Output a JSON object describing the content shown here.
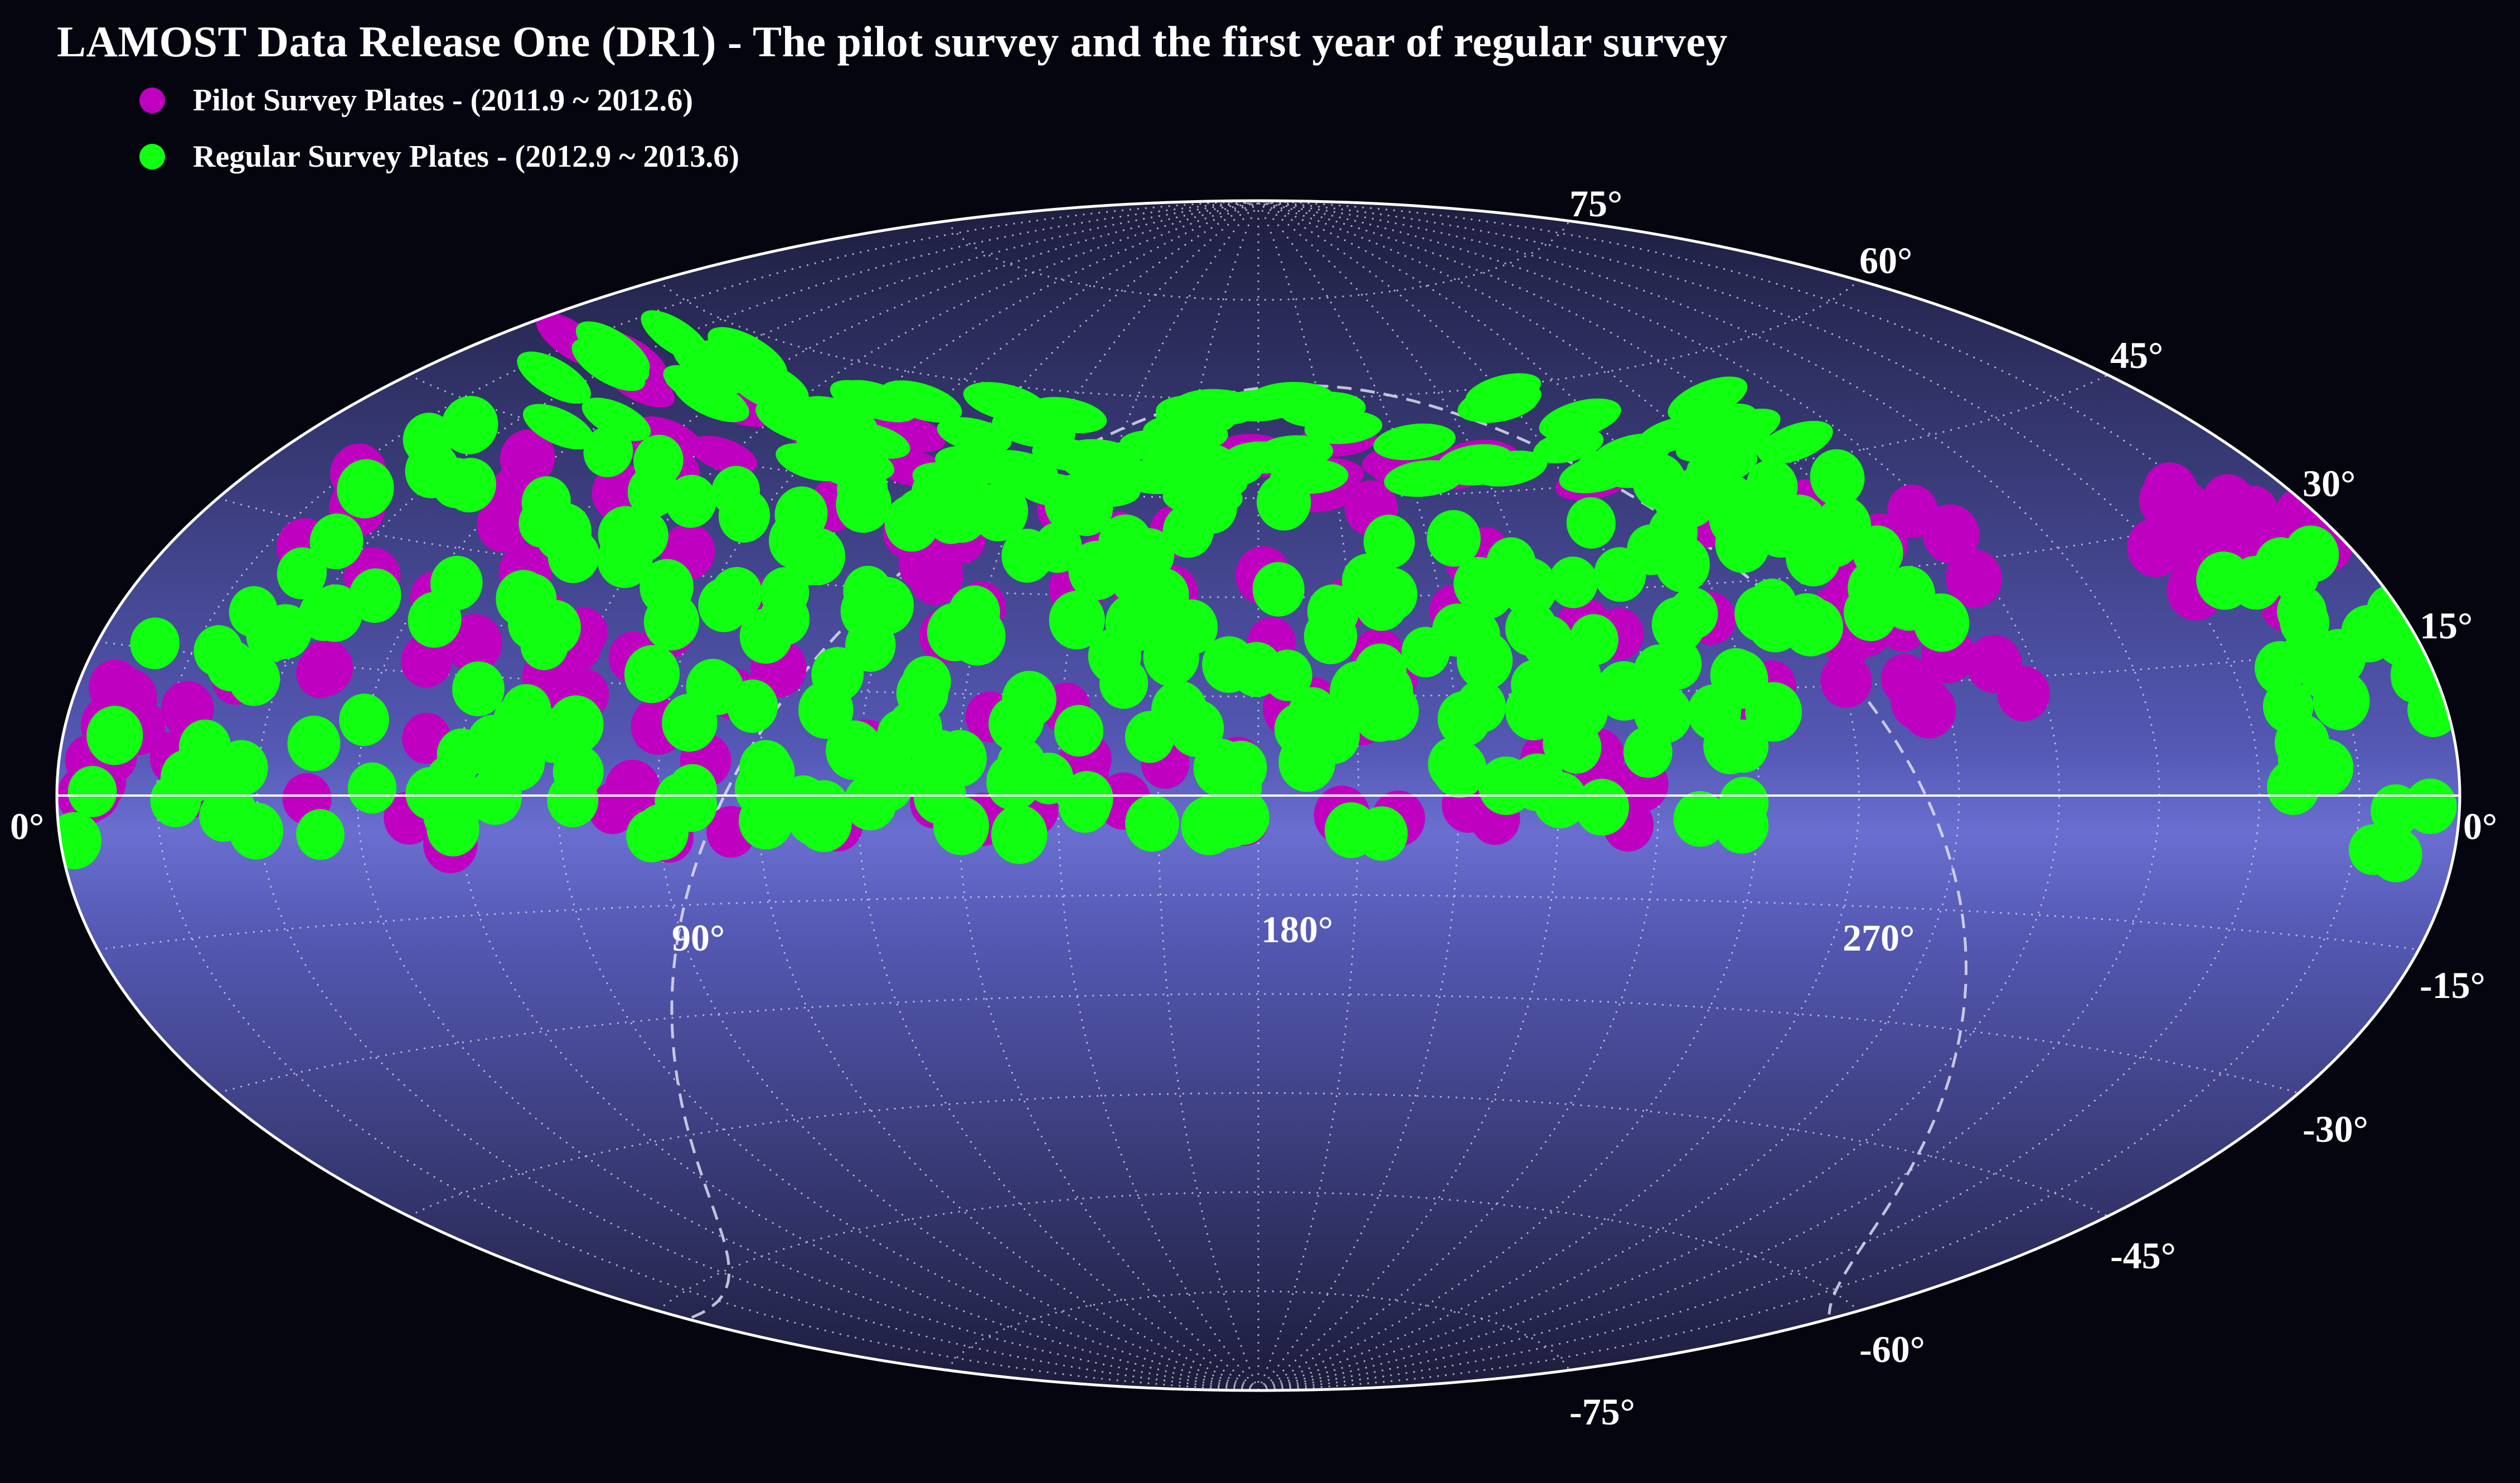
{
  "title": "LAMOST Data Release One (DR1) - The pilot survey and the first year of regular survey",
  "legend": [
    {
      "label": "Pilot Survey Plates - (2011.9 ~ 2012.6)",
      "color": "#c000c0"
    },
    {
      "label": "Regular Survey Plates - (2012.9 ~ 2013.6)",
      "color": "#11ff11"
    }
  ],
  "colors": {
    "background": "#05050f",
    "map_center": "#6b6fd0",
    "map_edge": "#2c2c58",
    "pilot": "#c000c0",
    "regular": "#11ff11",
    "grid": "#d8d8ee"
  },
  "latitude_labels": [
    "75°",
    "60°",
    "45°",
    "30°",
    "15°",
    "0°",
    "0°",
    "-15°",
    "-30°",
    "-45°",
    "-60°",
    "-75°"
  ],
  "longitude_labels": [
    "90°",
    "180°",
    "270°"
  ],
  "map": {
    "projection": "aitoff",
    "longitude_range": [
      0,
      360
    ],
    "latitude_range": [
      -90,
      90
    ],
    "graticule_step_deg": 15,
    "galactic_plane": "dashed"
  }
}
